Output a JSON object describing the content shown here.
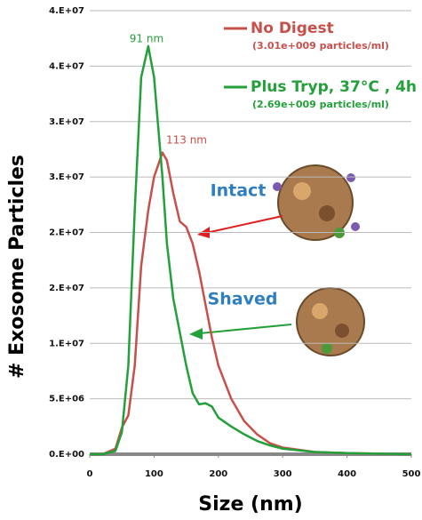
{
  "chart_data": {
    "type": "line",
    "x_label": "Size (nm)",
    "y_label": "# Exosome Particles",
    "x": [
      0,
      20,
      40,
      50,
      60,
      70,
      80,
      91,
      100,
      113,
      120,
      130,
      140,
      150,
      160,
      170,
      180,
      190,
      200,
      220,
      240,
      260,
      280,
      300,
      350,
      400,
      450,
      500
    ],
    "series": [
      {
        "name": "No Digest",
        "note": "(3.01e+009 particles/ml)",
        "color": "#c8504a",
        "values": [
          0,
          0,
          500000,
          2400000,
          3500000,
          8000000,
          17000000,
          22000000,
          25000000,
          27200000,
          26500000,
          23500000,
          21000000,
          20500000,
          19000000,
          16500000,
          13500000,
          10500000,
          8000000,
          5000000,
          3000000,
          1800000,
          1000000,
          600000,
          200000,
          100000,
          50000,
          0
        ]
      },
      {
        "name": "Plus Tryp, 37°C , 4h",
        "note": "(2.69e+009 particles/ml)",
        "color": "#23a03a",
        "values": [
          0,
          0,
          300000,
          2000000,
          8000000,
          22000000,
          34000000,
          36800000,
          34000000,
          25000000,
          19000000,
          14000000,
          11000000,
          8000000,
          5500000,
          4500000,
          4600000,
          4300000,
          3300000,
          2500000,
          1800000,
          1200000,
          800000,
          500000,
          200000,
          100000,
          50000,
          0
        ]
      }
    ],
    "xlim": [
      0,
      500
    ],
    "xticks": [
      0,
      100,
      200,
      300,
      400,
      500
    ],
    "ylim": [
      0,
      40000000
    ],
    "yticks": [
      {
        "value": 0,
        "label": "0.E+00"
      },
      {
        "value": 5000000,
        "label": "5.E+06"
      },
      {
        "value": 10000000,
        "label": "1.E+07"
      },
      {
        "value": 15000000,
        "label": "2.E+07"
      },
      {
        "value": 20000000,
        "label": "2.E+07"
      },
      {
        "value": 25000000,
        "label": "3.E+07"
      },
      {
        "value": 30000000,
        "label": "3.E+07"
      },
      {
        "value": 35000000,
        "label": "4.E+07"
      },
      {
        "value": 40000000,
        "label": "4.E+07"
      }
    ],
    "grid": true,
    "annotations": [
      "91 nm",
      "113 nm",
      "Intact",
      "Shaved"
    ]
  }
}
